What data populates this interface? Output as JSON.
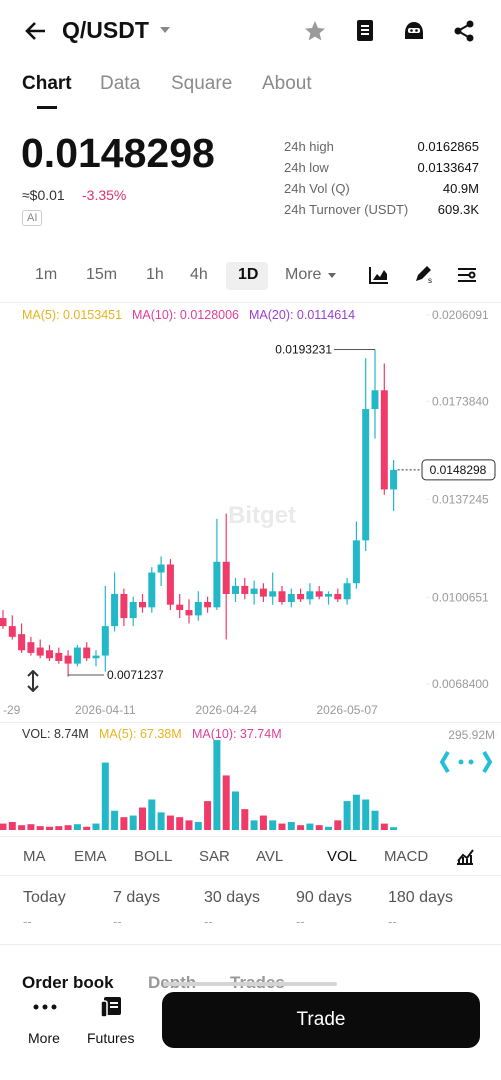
{
  "header": {
    "pair": "Q/USDT"
  },
  "tabs": [
    "Chart",
    "Data",
    "Square",
    "About"
  ],
  "price": {
    "last": "0.0148298",
    "fiat": "≈$0.01",
    "change": "-3.35%",
    "ai": "AI"
  },
  "stats": [
    [
      "24h high",
      "0.0162865"
    ],
    [
      "24h low",
      "0.0133647"
    ],
    [
      "24h Vol (Q)",
      "40.9M"
    ],
    [
      "24h Turnover (USDT)",
      "609.3K"
    ]
  ],
  "timeframes": [
    "1m",
    "15m",
    "1h",
    "4h",
    "1D",
    "More"
  ],
  "chart": {
    "type": "candlestick",
    "ma_legend": [
      {
        "text": "MA(5): 0.0153451",
        "color": "#e6b422"
      },
      {
        "text": "MA(10): 0.0128006",
        "color": "#e0409a"
      },
      {
        "text": "MA(20): 0.0114614",
        "color": "#9b3fd0"
      }
    ],
    "watermark": "Bitget",
    "up_color": "#22b8c8",
    "down_color": "#f03a6a",
    "ylim": [
      0.00684,
      0.0206091
    ],
    "yticks": [
      0.0206091,
      {
        "value": 0.017384,
        "label": "0.0173840"
      },
      0.0137245,
      0.0100651,
      {
        "value": 0.00684,
        "label": "0.0068400"
      }
    ],
    "last_price": 0.0148298,
    "candles": [
      [
        0.0093,
        0.0096,
        0.0089,
        0.009
      ],
      [
        0.009,
        0.0094,
        0.0085,
        0.0086
      ],
      [
        0.0087,
        0.0091,
        0.008,
        0.0081
      ],
      [
        0.0084,
        0.0086,
        0.0079,
        0.008
      ],
      [
        0.0082,
        0.0085,
        0.0078,
        0.0079
      ],
      [
        0.0081,
        0.0083,
        0.0077,
        0.0078
      ],
      [
        0.008,
        0.0082,
        0.0076,
        0.0077
      ],
      [
        0.0079,
        0.0081,
        0.0071237,
        0.0076
      ],
      [
        0.0076,
        0.0083,
        0.0075,
        0.0082
      ],
      [
        0.0082,
        0.0084,
        0.0077,
        0.0078
      ],
      [
        0.0078,
        0.0081,
        0.0075,
        0.0079
      ],
      [
        0.0079,
        0.0105,
        0.0073,
        0.009
      ],
      [
        0.009,
        0.011,
        0.0088,
        0.0102
      ],
      [
        0.0102,
        0.0104,
        0.009,
        0.0093
      ],
      [
        0.0093,
        0.0101,
        0.009,
        0.0099
      ],
      [
        0.0099,
        0.0102,
        0.0095,
        0.0097
      ],
      [
        0.0097,
        0.0112,
        0.0095,
        0.011
      ],
      [
        0.011,
        0.0116,
        0.0105,
        0.0113
      ],
      [
        0.0113,
        0.0115,
        0.0096,
        0.0098
      ],
      [
        0.0098,
        0.0102,
        0.0093,
        0.0096
      ],
      [
        0.0096,
        0.01,
        0.0091,
        0.0094
      ],
      [
        0.0094,
        0.0103,
        0.0092,
        0.0099
      ],
      [
        0.0099,
        0.0101,
        0.0095,
        0.0097
      ],
      [
        0.0097,
        0.013,
        0.0096,
        0.0114
      ],
      [
        0.0114,
        0.0132,
        0.0085,
        0.0102
      ],
      [
        0.0102,
        0.0108,
        0.0099,
        0.0105
      ],
      [
        0.0105,
        0.0108,
        0.01,
        0.0102
      ],
      [
        0.0102,
        0.0107,
        0.0098,
        0.0104
      ],
      [
        0.0104,
        0.0106,
        0.0099,
        0.0101
      ],
      [
        0.0101,
        0.011,
        0.0098,
        0.0103
      ],
      [
        0.0103,
        0.0105,
        0.0098,
        0.0099
      ],
      [
        0.0099,
        0.0104,
        0.0097,
        0.0102
      ],
      [
        0.0102,
        0.0104,
        0.0099,
        0.01
      ],
      [
        0.01,
        0.0106,
        0.0098,
        0.0103
      ],
      [
        0.0103,
        0.0105,
        0.01,
        0.0101
      ],
      [
        0.0101,
        0.0103,
        0.0098,
        0.0102
      ],
      [
        0.0102,
        0.0104,
        0.0099,
        0.01
      ],
      [
        0.01,
        0.0108,
        0.0098,
        0.0106
      ],
      [
        0.0106,
        0.0129,
        0.0104,
        0.0122
      ],
      [
        0.0122,
        0.019,
        0.0118,
        0.0171
      ],
      [
        0.0171,
        0.0193231,
        0.016,
        0.0178
      ],
      [
        0.0178,
        0.0188,
        0.0139,
        0.0141
      ],
      [
        0.0141,
        0.0152,
        0.0133,
        0.0148298
      ]
    ],
    "dates": [
      "-29",
      null,
      null,
      null,
      null,
      null,
      null,
      null,
      null,
      null,
      null,
      "2026-04-11",
      null,
      null,
      null,
      null,
      null,
      null,
      null,
      null,
      null,
      null,
      null,
      null,
      "2026-04-24",
      null,
      null,
      null,
      null,
      null,
      null,
      null,
      null,
      null,
      null,
      null,
      null,
      "2026-05-07",
      null,
      null,
      null,
      null,
      null
    ]
  },
  "volume": {
    "legend": [
      {
        "text": "VOL: 8.74M",
        "color": "#333333"
      },
      {
        "text": "MA(5): 67.38M",
        "color": "#e6b422"
      },
      {
        "text": "MA(10): 37.74M",
        "color": "#e0409a"
      }
    ],
    "ylim": [
      0,
      295.92
    ],
    "yticks": [
      {
        "value": 295.92,
        "label": "295.92M"
      }
    ],
    "values": [
      20,
      25,
      15,
      18,
      12,
      10,
      12,
      15,
      18,
      10,
      20,
      210,
      60,
      40,
      45,
      70,
      95,
      55,
      45,
      40,
      30,
      25,
      90,
      280,
      170,
      120,
      65,
      30,
      45,
      30,
      20,
      25,
      15,
      20,
      15,
      10,
      30,
      90,
      110,
      95,
      60,
      20,
      8.74
    ]
  },
  "indicators": [
    "MA",
    "EMA",
    "BOLL",
    "SAR",
    "AVL",
    "VOL",
    "MACD"
  ],
  "periods": [
    [
      "Today",
      "--"
    ],
    [
      "7 days",
      "--"
    ],
    [
      "30 days",
      "--"
    ],
    [
      "90 days",
      "--"
    ],
    [
      "180 days",
      "--"
    ]
  ],
  "sheet_tabs": [
    "Order book",
    "Depth",
    "Trades"
  ],
  "nav": [
    "More",
    "Futures"
  ],
  "trade": "Trade"
}
